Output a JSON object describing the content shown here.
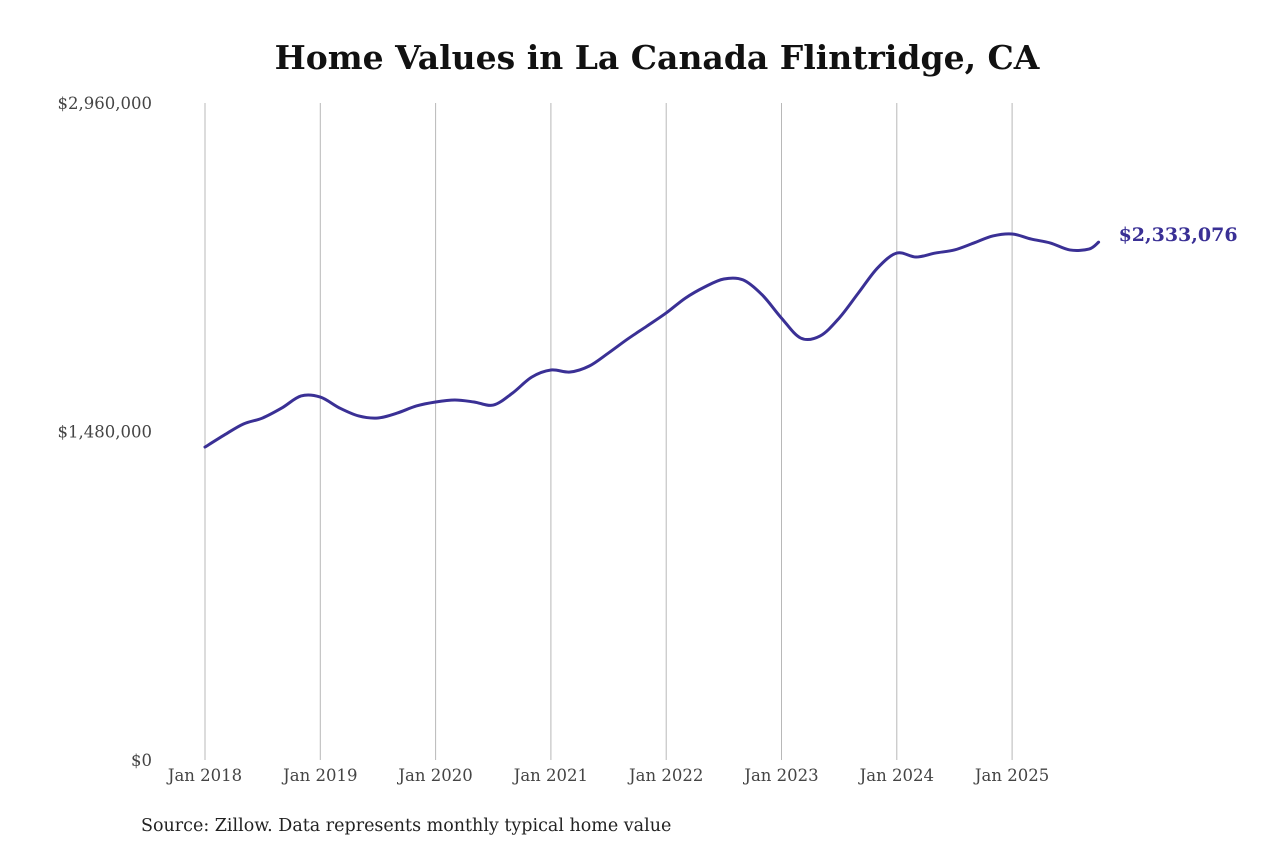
{
  "chart_data": {
    "type": "line",
    "title": "Home Values in La Canada Flintridge, CA",
    "xlabel": "",
    "ylabel": "",
    "ylim": [
      0,
      2960000
    ],
    "y_ticks": [
      0,
      1480000,
      2960000
    ],
    "y_tick_labels": [
      "$0",
      "$1,480,000",
      "$2,960,000"
    ],
    "x_tick_labels": [
      "Jan 2018",
      "Jan 2019",
      "Jan 2020",
      "Jan 2021",
      "Jan 2022",
      "Jan 2023",
      "Jan 2024",
      "Jan 2025"
    ],
    "grid": "vertical",
    "legend": "none",
    "series": [
      {
        "name": "Typical home value",
        "color": "#3a3095",
        "x": [
          "2018-01",
          "2018-03",
          "2018-05",
          "2018-07",
          "2018-09",
          "2018-11",
          "2019-01",
          "2019-03",
          "2019-05",
          "2019-07",
          "2019-09",
          "2019-11",
          "2020-01",
          "2020-03",
          "2020-05",
          "2020-07",
          "2020-09",
          "2020-11",
          "2021-01",
          "2021-03",
          "2021-05",
          "2021-07",
          "2021-09",
          "2021-11",
          "2022-01",
          "2022-03",
          "2022-05",
          "2022-07",
          "2022-09",
          "2022-11",
          "2023-01",
          "2023-03",
          "2023-05",
          "2023-07",
          "2023-09",
          "2023-11",
          "2024-01",
          "2024-03",
          "2024-05",
          "2024-07",
          "2024-09",
          "2024-11",
          "2025-01",
          "2025-03",
          "2025-05",
          "2025-07",
          "2025-09",
          "2025-10"
        ],
        "values": [
          1410000,
          1464000,
          1514000,
          1541000,
          1586000,
          1640000,
          1635000,
          1586000,
          1550000,
          1541000,
          1563000,
          1595000,
          1613000,
          1622000,
          1613000,
          1599000,
          1653000,
          1725000,
          1757000,
          1748000,
          1775000,
          1834000,
          1897000,
          1955000,
          2014000,
          2081000,
          2131000,
          2167000,
          2163000,
          2095000,
          1991000,
          1901000,
          1910000,
          1991000,
          2104000,
          2217000,
          2284000,
          2266000,
          2284000,
          2298000,
          2329000,
          2361000,
          2370000,
          2347000,
          2329000,
          2298000,
          2302000,
          2333076
        ]
      }
    ],
    "end_label": "$2,333,076",
    "source": "Source: Zillow. Data represents monthly typical home value"
  }
}
